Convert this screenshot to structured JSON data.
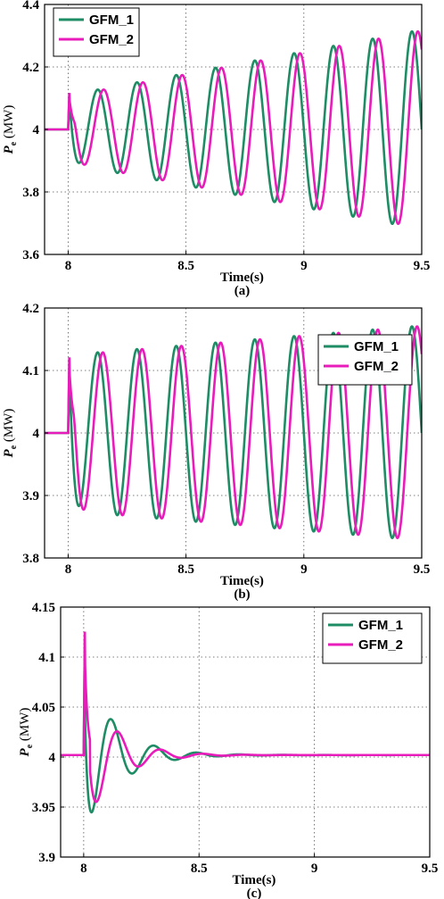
{
  "chart_data": [
    {
      "type": "line",
      "caption": "(a)",
      "xlabel": "Time(s)",
      "ylabel_main": "P",
      "ylabel_sub": "e",
      "ylabel_unit": "(MW)",
      "xlim": [
        7.9,
        9.5
      ],
      "ylim": [
        3.6,
        4.4
      ],
      "xticks": [
        8,
        8.5,
        9,
        9.5
      ],
      "xtick_labels": [
        "8",
        "8.5",
        "9",
        "9.5"
      ],
      "yticks": [
        3.6,
        3.8,
        4,
        4.2,
        4.4
      ],
      "ytick_labels": [
        "3.6",
        "3.8",
        "4",
        "4.2",
        "4.4"
      ],
      "grid": true,
      "legend_position": "top-left",
      "dynamics": {
        "base": 4.0,
        "t0": 8.0,
        "spike": 4.14,
        "freq_hz": 6.0,
        "amp0": 0.11,
        "growth": 1.27,
        "decay": 0.0
      },
      "series": [
        {
          "name": "GFM_1",
          "color": "#1e8c64",
          "phase_lag_s": 0.0
        },
        {
          "name": "GFM_2",
          "color": "#e81cba",
          "phase_lag_s": 0.025
        }
      ]
    },
    {
      "type": "line",
      "caption": "(b)",
      "xlabel": "Time(s)",
      "ylabel_main": "P",
      "ylabel_sub": "e",
      "ylabel_unit": "(MW)",
      "xlim": [
        7.9,
        9.5
      ],
      "ylim": [
        3.8,
        4.2
      ],
      "xticks": [
        8,
        8.5,
        9,
        9.5
      ],
      "xtick_labels": [
        "8",
        "8.5",
        "9",
        "9.5"
      ],
      "yticks": [
        3.8,
        3.9,
        4,
        4.1,
        4.2
      ],
      "ytick_labels": [
        "3.8",
        "3.9",
        "4",
        "4.1",
        "4.2"
      ],
      "grid": true,
      "legend_position": "top-right",
      "dynamics": {
        "base": 4.0,
        "t0": 8.0,
        "spike": 4.145,
        "freq_hz": 6.0,
        "amp0": 0.125,
        "growth": 0.25,
        "decay": 0.0
      },
      "series": [
        {
          "name": "GFM_1",
          "color": "#1e8c64",
          "phase_lag_s": 0.0
        },
        {
          "name": "GFM_2",
          "color": "#e81cba",
          "phase_lag_s": 0.022
        }
      ]
    },
    {
      "type": "line",
      "caption": "(c)",
      "xlabel": "Time(s)",
      "ylabel_main": "P",
      "ylabel_sub": "e",
      "ylabel_unit": "(MW)",
      "xlim": [
        7.9,
        9.5
      ],
      "ylim": [
        3.9,
        4.15
      ],
      "xticks": [
        8,
        8.5,
        9,
        9.5
      ],
      "xtick_labels": [
        "8",
        "8.5",
        "9",
        "9.5"
      ],
      "yticks": [
        3.9,
        3.95,
        4,
        4.05,
        4.1,
        4.15
      ],
      "ytick_labels": [
        "3.9",
        "3.95",
        "4",
        "4.05",
        "4.1",
        "4.15"
      ],
      "grid": true,
      "legend_position": "top-right",
      "dynamics": {
        "base": 4.002,
        "t0": 8.0,
        "spike": 4.15,
        "freq_hz": 5.4,
        "amp0": 0.0,
        "growth": 0.0,
        "decay": 0.0
      },
      "series": [
        {
          "name": "GFM_1",
          "color": "#1e8c64",
          "damped_amp": 0.085,
          "damped_decay": 7.2,
          "phase_lag_s": 0.0
        },
        {
          "name": "GFM_2",
          "color": "#e81cba",
          "damped_amp": 0.06,
          "damped_decay": 7.8,
          "phase_lag_s": 0.028
        }
      ]
    }
  ]
}
